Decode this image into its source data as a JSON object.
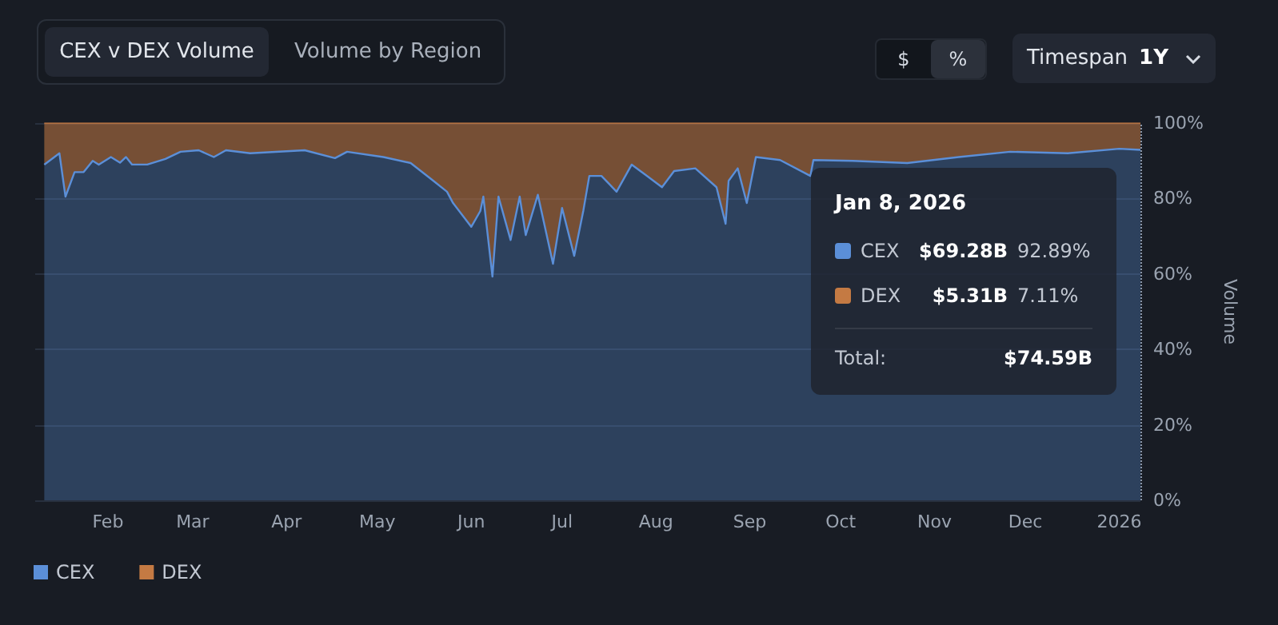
{
  "chart_data": {
    "type": "area",
    "stacked": true,
    "ylabel": "Volume",
    "x": [
      "2025-01-11",
      "2025-01-16",
      "2025-01-18",
      "2025-01-21",
      "2025-01-24",
      "2025-01-27",
      "2025-01-29",
      "2025-02-02",
      "2025-02-05",
      "2025-02-07",
      "2025-02-09",
      "2025-02-14",
      "2025-02-20",
      "2025-02-25",
      "2025-03-03",
      "2025-03-08",
      "2025-03-12",
      "2025-03-20",
      "2025-04-07",
      "2025-04-17",
      "2025-04-21",
      "2025-05-03",
      "2025-05-12",
      "2025-05-19",
      "2025-05-24",
      "2025-05-26",
      "2025-06-01",
      "2025-06-04",
      "2025-06-05",
      "2025-06-08",
      "2025-06-10",
      "2025-06-14",
      "2025-06-17",
      "2025-06-19",
      "2025-06-23",
      "2025-06-28",
      "2025-07-01",
      "2025-07-05",
      "2025-07-08",
      "2025-07-10",
      "2025-07-14",
      "2025-07-19",
      "2025-07-24",
      "2025-07-29",
      "2025-08-03",
      "2025-08-07",
      "2025-08-14",
      "2025-08-21",
      "2025-08-24",
      "2025-08-25",
      "2025-08-28",
      "2025-08-31",
      "2025-09-03",
      "2025-09-11",
      "2025-09-21",
      "2025-09-22",
      "2025-10-05",
      "2025-10-23",
      "2025-11-09",
      "2025-11-26",
      "2025-12-15",
      "2026-01-01",
      "2026-01-08"
    ],
    "series": [
      {
        "name": "CEX",
        "color": "#5b8fd8",
        "values": [
          89,
          92,
          80.5,
          87,
          87,
          90,
          89,
          91,
          89.5,
          91,
          89,
          89,
          90.5,
          92.4,
          92.8,
          91,
          92.8,
          92,
          92.8,
          90.7,
          92.4,
          91,
          89.4,
          85,
          81.8,
          78.8,
          72.5,
          76.7,
          80.5,
          59.3,
          80.5,
          69,
          80.5,
          70.3,
          81,
          62.7,
          77.5,
          64.8,
          76.7,
          86,
          86,
          81.8,
          89,
          86,
          83,
          87.3,
          88,
          83,
          73.3,
          84.7,
          88,
          78.8,
          91,
          90.2,
          86,
          90.2,
          90,
          89.4,
          91,
          92.4,
          92,
          93.2,
          92.9
        ]
      },
      {
        "name": "DEX",
        "color": "#c47a43",
        "values": [
          11,
          8,
          19.5,
          13,
          13,
          10,
          11,
          9,
          10.5,
          9,
          11,
          11,
          9.5,
          7.6,
          7.2,
          9,
          7.2,
          8,
          7.2,
          9.3,
          7.6,
          9,
          10.6,
          15,
          18.2,
          21.2,
          27.5,
          23.3,
          19.5,
          40.7,
          19.5,
          31,
          19.5,
          29.7,
          19,
          37.3,
          22.5,
          35.2,
          23.3,
          14,
          14,
          18.2,
          11,
          14,
          17,
          12.7,
          12,
          17,
          26.7,
          15.3,
          12,
          21.2,
          9,
          9.8,
          14,
          9.8,
          10,
          10.6,
          9,
          7.6,
          8,
          6.8,
          7.1
        ]
      }
    ],
    "xlim": [
      "2025-01-08",
      "2026-01-08"
    ],
    "xticks": [
      {
        "value": "2025-02-01",
        "label": "Feb"
      },
      {
        "value": "2025-03-01",
        "label": "Mar"
      },
      {
        "value": "2025-04-01",
        "label": "Apr"
      },
      {
        "value": "2025-05-01",
        "label": "May"
      },
      {
        "value": "2025-06-01",
        "label": "Jun"
      },
      {
        "value": "2025-07-01",
        "label": "Jul"
      },
      {
        "value": "2025-08-01",
        "label": "Aug"
      },
      {
        "value": "2025-09-01",
        "label": "Sep"
      },
      {
        "value": "2025-10-01",
        "label": "Oct"
      },
      {
        "value": "2025-11-01",
        "label": "Nov"
      },
      {
        "value": "2025-12-01",
        "label": "Dec"
      },
      {
        "value": "2026-01-01",
        "label": "2026"
      }
    ],
    "ylim": [
      0,
      100
    ],
    "yticks": [
      {
        "value": 0,
        "label": "0%"
      },
      {
        "value": 20,
        "label": "20%"
      },
      {
        "value": 40,
        "label": "40%"
      },
      {
        "value": 60,
        "label": "60%"
      },
      {
        "value": 80,
        "label": "80%"
      },
      {
        "value": 100,
        "label": "100%"
      }
    ],
    "grid": "y",
    "legend": "bottom left",
    "ref_lines": [
      {
        "axis": "x",
        "value": "2026-01-08",
        "line_style": "dotted",
        "color": "#8a96a8"
      }
    ],
    "annotations": [
      "CEX v DEX Volume",
      "Volume by Region",
      "$",
      "%",
      "Timespan",
      "1Y",
      "Jan 8, 2026",
      "CEX",
      "$69.28B",
      "92.89%",
      "DEX",
      "$5.31B",
      "7.11%",
      "Total:",
      "$74.59B"
    ]
  }
}
